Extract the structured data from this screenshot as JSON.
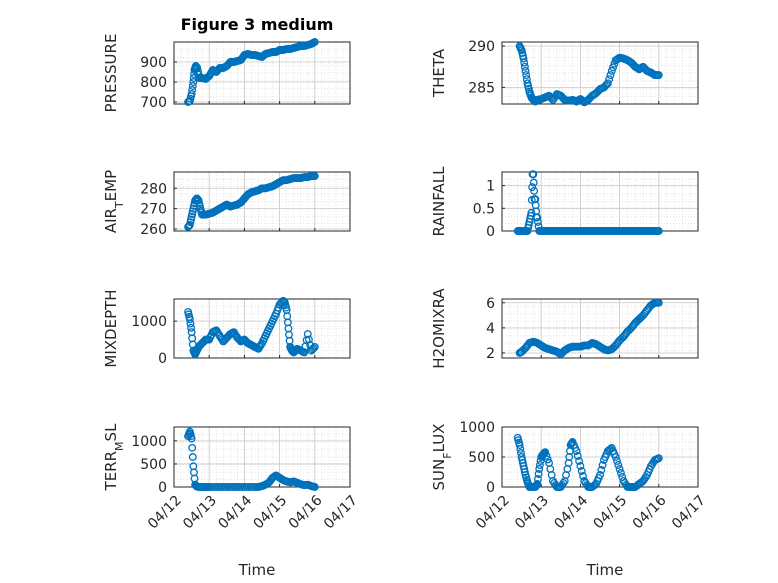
{
  "figure_title": "Figure 3 medium",
  "xlabel": "Time",
  "marker_color": "#0072BD",
  "x_ticks": [
    "04/12",
    "04/13",
    "04/14",
    "04/15",
    "04/16",
    "04/17"
  ],
  "chart_data": [
    {
      "type": "scatter",
      "ylabel_main": "PRESSURE",
      "ylabel_sub": "",
      "ylabel_tail": "",
      "yticks": [
        "700",
        "800",
        "900"
      ],
      "ylim": [
        690,
        1000
      ],
      "xlim": [
        "04/12",
        "04/17"
      ],
      "grid": true,
      "x": [
        0.4,
        0.45,
        0.5,
        0.55,
        0.58,
        0.62,
        0.66,
        0.72,
        0.8,
        0.9,
        1.0,
        1.1,
        1.2,
        1.3,
        1.4,
        1.5,
        1.6,
        1.7,
        1.8,
        1.9,
        2.0,
        2.1,
        2.2,
        2.3,
        2.4,
        2.5,
        2.6,
        2.7,
        2.8,
        2.9,
        3.0,
        3.1,
        3.2,
        3.3,
        3.4,
        3.5,
        3.6,
        3.7,
        3.8,
        3.9,
        4.0
      ],
      "y": [
        700,
        705,
        740,
        800,
        860,
        880,
        870,
        820,
        820,
        815,
        830,
        860,
        850,
        870,
        870,
        880,
        900,
        900,
        905,
        910,
        935,
        940,
        935,
        935,
        930,
        925,
        940,
        945,
        950,
        950,
        960,
        960,
        965,
        965,
        970,
        975,
        980,
        980,
        985,
        990,
        1000
      ]
    },
    {
      "type": "scatter",
      "ylabel_main": "THETA",
      "ylabel_sub": "",
      "ylabel_tail": "",
      "yticks": [
        "285",
        "290"
      ],
      "ylim": [
        283,
        290.5
      ],
      "xlim": [
        "04/12",
        "04/17"
      ],
      "grid": true,
      "x": [
        0.45,
        0.5,
        0.55,
        0.6,
        0.65,
        0.7,
        0.75,
        0.8,
        0.85,
        0.9,
        1.0,
        1.1,
        1.2,
        1.3,
        1.4,
        1.5,
        1.6,
        1.7,
        1.8,
        1.9,
        2.0,
        2.1,
        2.2,
        2.3,
        2.4,
        2.5,
        2.6,
        2.7,
        2.8,
        2.9,
        3.0,
        3.1,
        3.2,
        3.3,
        3.4,
        3.5,
        3.6,
        3.7,
        3.8,
        3.9,
        4.0
      ],
      "y": [
        290,
        289.5,
        288.5,
        287,
        285.5,
        284.5,
        283.8,
        283.5,
        283.3,
        283.5,
        283.6,
        283.8,
        284.0,
        283.5,
        284.2,
        284.0,
        283.5,
        283.4,
        283.5,
        283.3,
        283.6,
        283.2,
        283.5,
        284.0,
        284.3,
        284.8,
        285.0,
        285.5,
        287.0,
        288.3,
        288.6,
        288.5,
        288.3,
        288.0,
        287.5,
        287.2,
        287.5,
        287.0,
        286.8,
        286.5,
        286.5
      ]
    },
    {
      "type": "scatter",
      "ylabel_main": "AIR",
      "ylabel_sub": "T",
      "ylabel_tail": "EMP",
      "yticks": [
        "260",
        "270",
        "280"
      ],
      "ylim": [
        259,
        288
      ],
      "xlim": [
        "04/12",
        "04/17"
      ],
      "grid": true,
      "x": [
        0.4,
        0.45,
        0.5,
        0.55,
        0.6,
        0.65,
        0.7,
        0.75,
        0.8,
        0.9,
        1.0,
        1.1,
        1.2,
        1.3,
        1.4,
        1.5,
        1.6,
        1.7,
        1.8,
        1.9,
        2.0,
        2.1,
        2.2,
        2.3,
        2.4,
        2.5,
        2.6,
        2.7,
        2.8,
        2.9,
        3.0,
        3.1,
        3.2,
        3.3,
        3.4,
        3.5,
        3.6,
        3.7,
        3.8,
        3.9,
        4.0
      ],
      "y": [
        261,
        262,
        266,
        270,
        274,
        275,
        274,
        270,
        267,
        267,
        267.5,
        268,
        269,
        270,
        271,
        272,
        271,
        271.5,
        272,
        273,
        275,
        277,
        278,
        278.5,
        279,
        280,
        280,
        280.5,
        281,
        282,
        283,
        284,
        284,
        284.5,
        285,
        285,
        285,
        285.5,
        285.5,
        286,
        286
      ]
    },
    {
      "type": "scatter",
      "ylabel_main": "RAINFALL",
      "ylabel_sub": "",
      "ylabel_tail": "",
      "yticks": [
        "0",
        "0.5",
        "1"
      ],
      "ylim": [
        0,
        1.3
      ],
      "xlim": [
        "04/12",
        "04/17"
      ],
      "grid": true,
      "x": [
        0.4,
        0.5,
        0.6,
        0.65,
        0.7,
        0.75,
        0.78,
        0.8,
        0.83,
        0.85,
        0.88,
        0.9,
        0.95,
        1.0,
        1.1,
        1.2,
        1.3,
        1.4,
        1.5,
        1.6,
        1.7,
        1.8,
        1.9,
        2.0,
        2.1,
        2.2,
        2.3,
        2.4,
        2.5,
        2.6,
        2.7,
        2.8,
        2.9,
        3.0,
        3.1,
        3.2,
        3.3,
        3.4,
        3.5,
        3.6,
        3.7,
        3.8,
        3.9,
        4.0
      ],
      "y": [
        0,
        0,
        0,
        0,
        0.2,
        0.4,
        1.25,
        1.25,
        0.7,
        0.7,
        0.3,
        0.3,
        0,
        0,
        0,
        0,
        0,
        0,
        0,
        0,
        0,
        0,
        0,
        0,
        0,
        0,
        0,
        0,
        0,
        0,
        0,
        0,
        0,
        0,
        0,
        0,
        0,
        0,
        0,
        0,
        0,
        0,
        0,
        0
      ]
    },
    {
      "type": "scatter",
      "ylabel_main": "MIXDEPTH",
      "ylabel_sub": "",
      "ylabel_tail": "",
      "yticks": [
        "0",
        "1000"
      ],
      "ylim": [
        0,
        1600
      ],
      "xlim": [
        "04/12",
        "04/17"
      ],
      "grid": true,
      "x": [
        0.4,
        0.45,
        0.5,
        0.55,
        0.6,
        0.65,
        0.7,
        0.8,
        0.9,
        1.0,
        1.1,
        1.2,
        1.3,
        1.4,
        1.5,
        1.6,
        1.7,
        1.8,
        1.9,
        2.0,
        2.1,
        2.2,
        2.3,
        2.4,
        2.5,
        2.6,
        2.7,
        2.8,
        2.9,
        3.0,
        3.1,
        3.15,
        3.2,
        3.25,
        3.3,
        3.35,
        3.4,
        3.45,
        3.5,
        3.6,
        3.7,
        3.8,
        3.9,
        4.0
      ],
      "y": [
        1250,
        1050,
        700,
        200,
        100,
        200,
        300,
        400,
        500,
        500,
        700,
        750,
        600,
        450,
        550,
        650,
        700,
        550,
        450,
        500,
        400,
        350,
        300,
        250,
        400,
        600,
        800,
        1000,
        1200,
        1450,
        1550,
        1500,
        1300,
        800,
        300,
        200,
        150,
        200,
        250,
        200,
        150,
        650,
        200,
        300
      ]
    },
    {
      "type": "scatter",
      "ylabel_main": "H2OMIXRA",
      "ylabel_sub": "",
      "ylabel_tail": "",
      "yticks": [
        "2",
        "4",
        "6"
      ],
      "ylim": [
        1.6,
        6.3
      ],
      "xlim": [
        "04/12",
        "04/17"
      ],
      "grid": true,
      "x": [
        0.45,
        0.5,
        0.6,
        0.7,
        0.8,
        0.9,
        1.0,
        1.1,
        1.2,
        1.3,
        1.4,
        1.5,
        1.6,
        1.7,
        1.8,
        1.9,
        2.0,
        2.1,
        2.2,
        2.3,
        2.4,
        2.5,
        2.6,
        2.7,
        2.8,
        2.9,
        3.0,
        3.1,
        3.2,
        3.3,
        3.4,
        3.5,
        3.6,
        3.7,
        3.8,
        3.9,
        4.0
      ],
      "y": [
        2.0,
        2.1,
        2.4,
        2.8,
        2.9,
        2.8,
        2.6,
        2.4,
        2.3,
        2.2,
        2.1,
        1.9,
        2.2,
        2.4,
        2.5,
        2.5,
        2.5,
        2.6,
        2.6,
        2.8,
        2.7,
        2.5,
        2.3,
        2.2,
        2.3,
        2.6,
        3.0,
        3.3,
        3.7,
        4.0,
        4.4,
        4.7,
        5.0,
        5.4,
        5.8,
        6.0,
        6.0
      ]
    },
    {
      "type": "scatter",
      "ylabel_main": "TERR",
      "ylabel_sub": "M",
      "ylabel_tail": "SL",
      "yticks": [
        "0",
        "500",
        "1000"
      ],
      "ylim": [
        0,
        1300
      ],
      "xlim": [
        "04/12",
        "04/17"
      ],
      "grid": true,
      "x": [
        0.4,
        0.45,
        0.5,
        0.55,
        0.6,
        0.65,
        0.7,
        0.8,
        0.9,
        1.0,
        1.2,
        1.4,
        1.6,
        1.8,
        2.0,
        2.2,
        2.4,
        2.5,
        2.6,
        2.7,
        2.8,
        2.9,
        3.0,
        3.1,
        3.2,
        3.3,
        3.4,
        3.5,
        3.6,
        3.7,
        3.8,
        3.9,
        4.0
      ],
      "y": [
        1100,
        1200,
        1050,
        450,
        50,
        10,
        0,
        0,
        0,
        0,
        0,
        0,
        0,
        0,
        0,
        0,
        0,
        20,
        50,
        100,
        200,
        250,
        200,
        150,
        120,
        100,
        120,
        90,
        60,
        40,
        50,
        20,
        0
      ]
    },
    {
      "type": "scatter",
      "ylabel_main": "SUN",
      "ylabel_sub": "F",
      "ylabel_tail": "LUX",
      "yticks": [
        "0",
        "500",
        "1000"
      ],
      "ylim": [
        0,
        1000
      ],
      "xlim": [
        "04/12",
        "04/17"
      ],
      "grid": true,
      "x": [
        0.4,
        0.45,
        0.5,
        0.55,
        0.6,
        0.65,
        0.7,
        0.75,
        0.8,
        0.85,
        0.9,
        0.95,
        1.0,
        1.05,
        1.1,
        1.2,
        1.3,
        1.4,
        1.5,
        1.6,
        1.7,
        1.75,
        1.8,
        1.9,
        2.0,
        2.1,
        2.2,
        2.3,
        2.4,
        2.5,
        2.6,
        2.7,
        2.8,
        2.9,
        3.0,
        3.1,
        3.2,
        3.3,
        3.4,
        3.5,
        3.6,
        3.7,
        3.8,
        3.9,
        4.0
      ],
      "y": [
        820,
        700,
        500,
        350,
        200,
        80,
        0,
        0,
        0,
        0,
        50,
        300,
        500,
        550,
        580,
        400,
        100,
        0,
        0,
        100,
        400,
        700,
        750,
        600,
        350,
        100,
        0,
        0,
        50,
        200,
        450,
        600,
        650,
        500,
        300,
        100,
        0,
        0,
        0,
        50,
        100,
        200,
        350,
        450,
        480
      ]
    }
  ]
}
